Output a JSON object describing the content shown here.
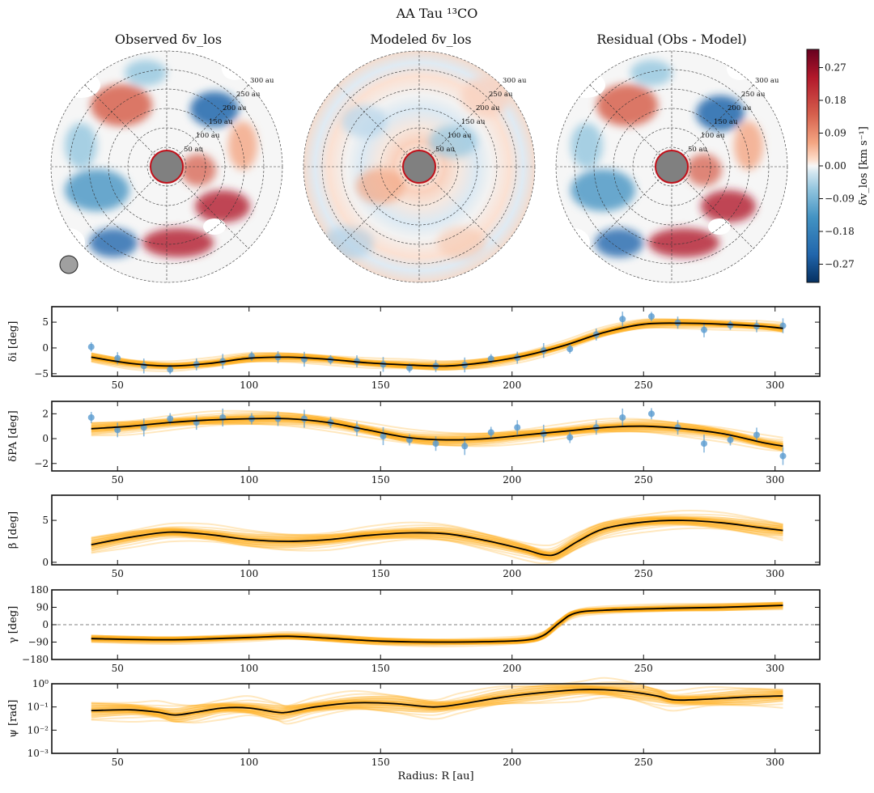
{
  "figure": {
    "title": "AA Tau ¹³CO",
    "colors": {
      "curve": "#000000",
      "samples": "#ffa500",
      "points": "#5a9bd0",
      "zero_line": "#808080"
    }
  },
  "maps": {
    "panels": [
      {
        "id": "observed",
        "title": "Observed δv_los"
      },
      {
        "id": "modeled",
        "title": "Modeled δv_los"
      },
      {
        "id": "residual",
        "title": "Residual (Obs - Model)"
      }
    ],
    "radius_labels": [
      "50 au",
      "100 au",
      "150 au",
      "200 au",
      "250 au",
      "300 au"
    ],
    "colorbar": {
      "label": "δv_los [km s⁻¹]",
      "ticks": [
        "0.27",
        "0.18",
        "0.09",
        "0.00",
        "−0.09",
        "−0.18",
        "−0.27"
      ],
      "range": [
        -0.32,
        0.32
      ],
      "cmap": "RdBu_r"
    }
  },
  "chart_data": [
    {
      "type": "line",
      "name": "delta_i",
      "ylabel": "δi [deg]",
      "xlabel": "",
      "xlim": [
        25,
        317
      ],
      "ylim": [
        -5.5,
        8
      ],
      "yticks": [
        "5",
        "0",
        "−5"
      ],
      "ytick_values": [
        5,
        0,
        -5
      ],
      "xticks": [
        "50",
        "100",
        "150",
        "200",
        "250",
        "300"
      ],
      "xtick_values": [
        50,
        100,
        150,
        200,
        250,
        300
      ],
      "x": [
        40,
        55,
        70,
        85,
        100,
        115,
        130,
        145,
        160,
        175,
        190,
        205,
        220,
        235,
        250,
        265,
        280,
        295,
        303
      ],
      "y": [
        -1.8,
        -3.0,
        -3.5,
        -3.0,
        -2.0,
        -1.8,
        -2.2,
        -2.9,
        -3.3,
        -3.5,
        -2.8,
        -1.5,
        0.5,
        3.0,
        4.6,
        4.8,
        4.6,
        4.2,
        3.8
      ],
      "points_x": [
        40,
        50,
        60,
        70,
        80,
        90,
        101,
        111,
        121,
        131,
        141,
        151,
        161,
        171,
        182,
        192,
        202,
        212,
        222,
        232,
        242,
        253,
        263,
        273,
        283,
        293,
        303
      ],
      "points_y": [
        0.2,
        -2.0,
        -3.5,
        -4.2,
        -3.2,
        -2.6,
        -1.6,
        -1.8,
        -2.2,
        -2.3,
        -2.6,
        -3.2,
        -3.9,
        -3.5,
        -3.3,
        -2.1,
        -1.9,
        -0.5,
        -0.2,
        2.6,
        5.6,
        6.1,
        4.9,
        3.5,
        4.4,
        4.2,
        4.3
      ],
      "band": 0.9
    },
    {
      "type": "line",
      "name": "delta_PA",
      "ylabel": "δPA [deg]",
      "xlabel": "",
      "xlim": [
        25,
        317
      ],
      "ylim": [
        -2.6,
        3
      ],
      "yticks": [
        "2",
        "0",
        "−2"
      ],
      "ytick_values": [
        2,
        0,
        -2
      ],
      "xticks": [
        "50",
        "100",
        "150",
        "200",
        "250",
        "300"
      ],
      "xtick_values": [
        50,
        100,
        150,
        200,
        250,
        300
      ],
      "x": [
        40,
        55,
        70,
        85,
        100,
        115,
        130,
        145,
        160,
        175,
        190,
        205,
        220,
        235,
        250,
        265,
        280,
        295,
        303
      ],
      "y": [
        0.8,
        1.0,
        1.3,
        1.5,
        1.6,
        1.6,
        1.3,
        0.7,
        0.1,
        -0.1,
        0.0,
        0.3,
        0.6,
        0.9,
        1.0,
        0.8,
        0.4,
        -0.3,
        -0.6
      ],
      "points_x": [
        40,
        50,
        60,
        70,
        80,
        90,
        101,
        111,
        121,
        131,
        141,
        151,
        161,
        171,
        182,
        192,
        202,
        212,
        222,
        232,
        242,
        253,
        263,
        273,
        283,
        293,
        303
      ],
      "points_y": [
        1.7,
        0.7,
        0.9,
        1.6,
        1.3,
        1.7,
        1.6,
        1.6,
        1.6,
        1.3,
        0.8,
        0.2,
        -0.1,
        -0.4,
        -0.6,
        0.5,
        0.9,
        0.4,
        0.1,
        0.9,
        1.7,
        2.0,
        0.9,
        -0.4,
        -0.1,
        0.3,
        -1.4
      ],
      "band": 0.55
    },
    {
      "type": "line",
      "name": "beta",
      "ylabel": "β [deg]",
      "xlabel": "",
      "xlim": [
        25,
        317
      ],
      "ylim": [
        -0.3,
        8
      ],
      "yticks": [
        "5",
        "0"
      ],
      "ytick_values": [
        5,
        0
      ],
      "xticks": [
        "50",
        "100",
        "150",
        "200",
        "250",
        "300"
      ],
      "xtick_values": [
        50,
        100,
        150,
        200,
        250,
        300
      ],
      "x": [
        40,
        55,
        70,
        85,
        100,
        115,
        130,
        145,
        160,
        175,
        190,
        205,
        212,
        217,
        225,
        235,
        250,
        265,
        280,
        295,
        303
      ],
      "y": [
        2.1,
        3.0,
        3.6,
        3.3,
        2.7,
        2.5,
        2.7,
        3.2,
        3.5,
        3.4,
        2.6,
        1.5,
        0.9,
        1.0,
        2.5,
        4.0,
        4.8,
        5.0,
        4.7,
        4.1,
        3.8
      ],
      "band": 1.0
    },
    {
      "type": "line",
      "name": "gamma",
      "ylabel": "γ [deg]",
      "xlabel": "",
      "xlim": [
        25,
        317
      ],
      "ylim": [
        -180,
        180
      ],
      "yticks": [
        "180",
        "90",
        "0",
        "−90",
        "−180"
      ],
      "ytick_values": [
        180,
        90,
        0,
        -90,
        -180
      ],
      "xticks": [
        "50",
        "100",
        "150",
        "200",
        "250",
        "300"
      ],
      "xtick_values": [
        50,
        100,
        150,
        200,
        250,
        300
      ],
      "x": [
        40,
        70,
        100,
        115,
        130,
        150,
        170,
        190,
        205,
        212,
        218,
        224,
        235,
        260,
        280,
        303
      ],
      "y": [
        -72,
        -78,
        -66,
        -60,
        -70,
        -85,
        -90,
        -88,
        -80,
        -55,
        10,
        60,
        75,
        85,
        90,
        100
      ],
      "band": 18,
      "zero_line": 0
    },
    {
      "type": "line",
      "name": "psi",
      "yscale": "log",
      "ylabel": "ψ [rad]",
      "xlabel": "Radius: R [au]",
      "xlim": [
        25,
        317
      ],
      "ylim": [
        0.001,
        1
      ],
      "yticks": [
        "10⁰",
        "10⁻¹",
        "10⁻²",
        "10⁻³"
      ],
      "ytick_values": [
        1,
        0.1,
        0.01,
        0.001
      ],
      "xticks": [
        "50",
        "100",
        "150",
        "200",
        "250",
        "300"
      ],
      "xtick_values": [
        50,
        100,
        150,
        200,
        250,
        300
      ],
      "x": [
        40,
        55,
        65,
        72,
        80,
        90,
        100,
        110,
        115,
        125,
        140,
        155,
        170,
        180,
        195,
        210,
        225,
        235,
        245,
        255,
        262,
        275,
        290,
        303
      ],
      "y": [
        0.07,
        0.075,
        0.06,
        0.045,
        0.06,
        0.09,
        0.09,
        0.06,
        0.06,
        0.1,
        0.15,
        0.14,
        0.1,
        0.13,
        0.25,
        0.4,
        0.55,
        0.55,
        0.45,
        0.3,
        0.2,
        0.22,
        0.27,
        0.3
      ],
      "band_factor": 2.5
    }
  ]
}
